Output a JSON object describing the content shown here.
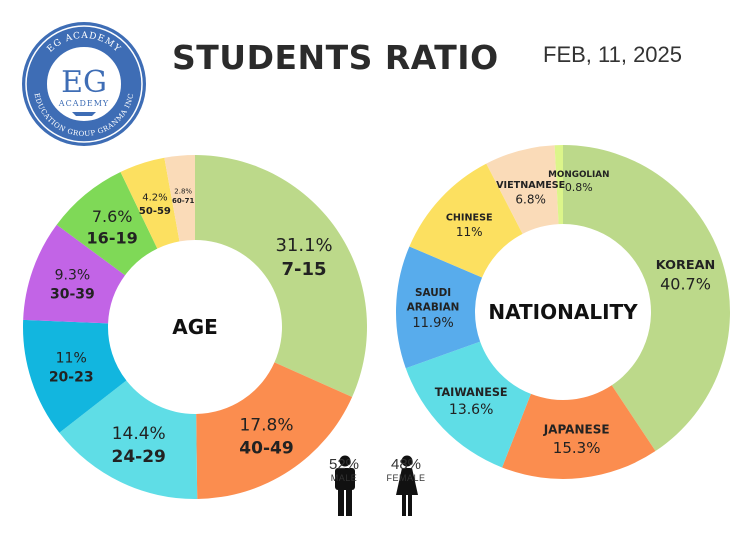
{
  "header": {
    "logo": {
      "top_text": "EG ACADEMY",
      "monogram": "EG",
      "sub_text": "ACADEMY",
      "ring_text": "EDUCATION GROUP GRANMA INC"
    },
    "title": "STUDENTS RATIO",
    "date": "FEB, 11, 2025"
  },
  "colors": {
    "green_light": "#bcd98a",
    "orange": "#fb8d4f",
    "cyan": "#5fdde6",
    "blue": "#12b6df",
    "purple": "#c264e6",
    "green": "#7fd957",
    "yellow": "#fce060",
    "peach": "#fadbb8",
    "sky": "#58acec",
    "lime": "#dcf58a",
    "logo_blue": "#3e6db5"
  },
  "chart_data": [
    {
      "type": "pie",
      "center_label": "AGE",
      "slices": [
        {
          "value": 31.1,
          "pct": "31.1%",
          "label": "7-15",
          "color": "#bcd98a"
        },
        {
          "value": 17.8,
          "pct": "17.8%",
          "label": "40-49",
          "color": "#fb8d4f"
        },
        {
          "value": 14.4,
          "pct": "14.4%",
          "label": "24-29",
          "color": "#5fdde6"
        },
        {
          "value": 11,
          "pct": "11%",
          "label": "20-23",
          "color": "#12b6df"
        },
        {
          "value": 9.3,
          "pct": "9.3%",
          "label": "30-39",
          "color": "#c264e6"
        },
        {
          "value": 7.6,
          "pct": "7.6%",
          "label": "16-19",
          "color": "#7fd957"
        },
        {
          "value": 4.2,
          "pct": "4.2%",
          "label": "50-59",
          "color": "#fce060"
        },
        {
          "value": 2.8,
          "pct": "2.8%",
          "label": "60-71",
          "color": "#fadbb8"
        }
      ]
    },
    {
      "type": "pie",
      "center_label": "NATIONALITY",
      "slices": [
        {
          "value": 40.7,
          "pct": "40.7%",
          "label": "KOREAN",
          "color": "#bcd98a"
        },
        {
          "value": 15.3,
          "pct": "15.3%",
          "label": "JAPANESE",
          "color": "#fb8d4f"
        },
        {
          "value": 13.6,
          "pct": "13.6%",
          "label": "TAIWANESE",
          "color": "#5fdde6"
        },
        {
          "value": 11.9,
          "pct": "11.9%",
          "label": "SAUDI ARABIAN",
          "color": "#58acec"
        },
        {
          "value": 11,
          "pct": "11%",
          "label": "CHINESE",
          "color": "#fce060"
        },
        {
          "value": 6.8,
          "pct": "6.8%",
          "label": "VIETNAMESE",
          "color": "#fadbb8"
        },
        {
          "value": 0.8,
          "pct": "0.8%",
          "label": "MONGOLIAN",
          "color": "#dcf58a"
        }
      ]
    }
  ],
  "gender": {
    "male": {
      "pct": "52%",
      "label": "MALE",
      "value": 52
    },
    "female": {
      "pct": "48%",
      "label": "FEMALE",
      "value": 48
    }
  }
}
